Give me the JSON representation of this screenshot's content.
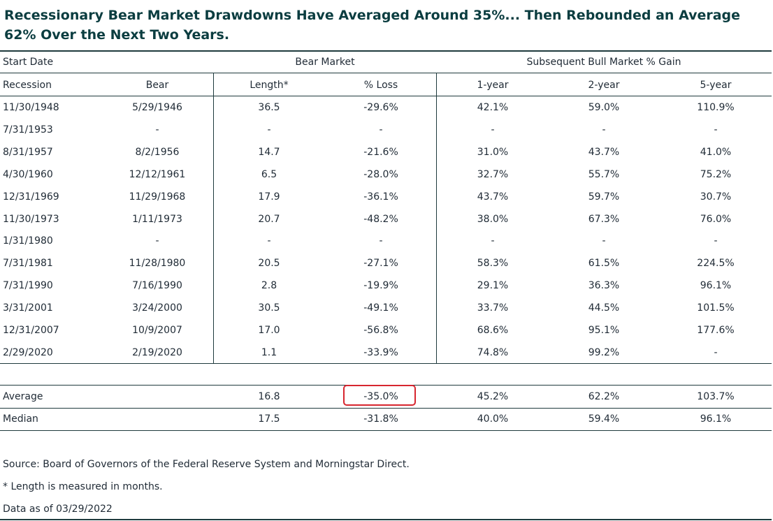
{
  "title": "Recessionary Bear Market Drawdowns Have Averaged Around 35%... Then Rebounded an Average 62% Over the Next Two Years.",
  "groups": {
    "start_date": "Start Date",
    "bear_market": "Bear Market",
    "bull_gain": "Subsequent Bull Market % Gain"
  },
  "columns": [
    "Recession",
    "Bear",
    "Length*",
    "% Loss",
    "1-year",
    "2-year",
    "5-year"
  ],
  "rows": [
    [
      "11/30/1948",
      "5/29/1946",
      "36.5",
      "-29.6%",
      "42.1%",
      "59.0%",
      "110.9%"
    ],
    [
      "7/31/1953",
      "-",
      "-",
      "-",
      "-",
      "-",
      "-"
    ],
    [
      "8/31/1957",
      "8/2/1956",
      "14.7",
      "-21.6%",
      "31.0%",
      "43.7%",
      "41.0%"
    ],
    [
      "4/30/1960",
      "12/12/1961",
      "6.5",
      "-28.0%",
      "32.7%",
      "55.7%",
      "75.2%"
    ],
    [
      "12/31/1969",
      "11/29/1968",
      "17.9",
      "-36.1%",
      "43.7%",
      "59.7%",
      "30.7%"
    ],
    [
      "11/30/1973",
      "1/11/1973",
      "20.7",
      "-48.2%",
      "38.0%",
      "67.3%",
      "76.0%"
    ],
    [
      "1/31/1980",
      "-",
      "-",
      "-",
      "-",
      "-",
      "-"
    ],
    [
      "7/31/1981",
      "11/28/1980",
      "20.5",
      "-27.1%",
      "58.3%",
      "61.5%",
      "224.5%"
    ],
    [
      "7/31/1990",
      "7/16/1990",
      "2.8",
      "-19.9%",
      "29.1%",
      "36.3%",
      "96.1%"
    ],
    [
      "3/31/2001",
      "3/24/2000",
      "30.5",
      "-49.1%",
      "33.7%",
      "44.5%",
      "101.5%"
    ],
    [
      "12/31/2007",
      "10/9/2007",
      "17.0",
      "-56.8%",
      "68.6%",
      "95.1%",
      "177.6%"
    ],
    [
      "2/29/2020",
      "2/19/2020",
      "1.1",
      "-33.9%",
      "74.8%",
      "99.2%",
      "-"
    ]
  ],
  "summary": [
    [
      "Average",
      "",
      "16.8",
      "-35.0%",
      "45.2%",
      "62.2%",
      "103.7%"
    ],
    [
      "Median",
      "",
      "17.5",
      "-31.8%",
      "40.0%",
      "59.4%",
      "96.1%"
    ]
  ],
  "highlight_color": "#d7262f",
  "footnotes": {
    "source": "Source: Board of Governors of the Federal Reserve System and Morningstar Direct.",
    "length_note": "* Length is measured in months.",
    "data_as_of": "Data as of 03/29/2022"
  }
}
